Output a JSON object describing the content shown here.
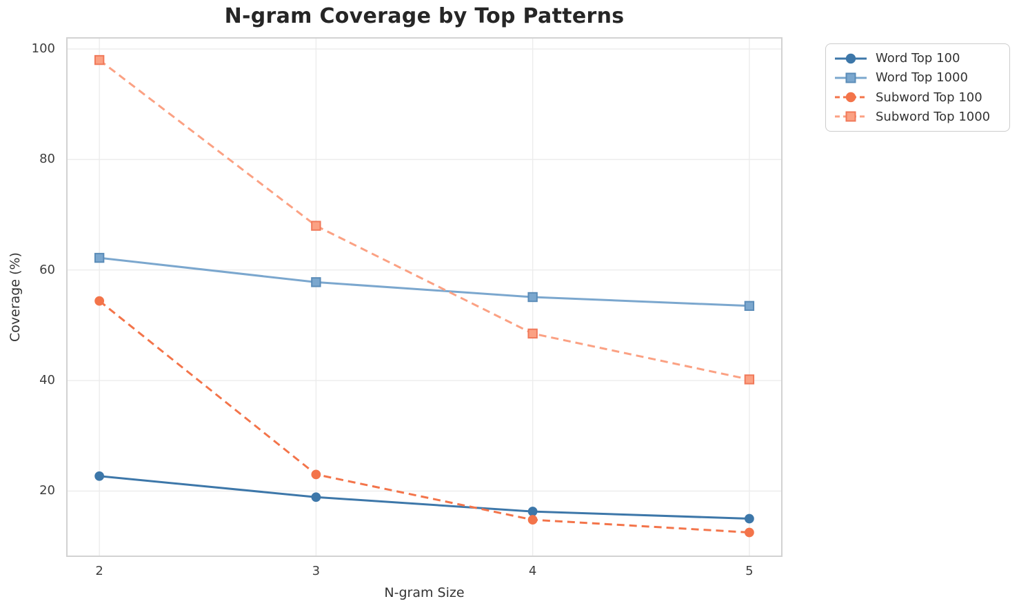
{
  "chart_data": {
    "type": "line",
    "title": "N-gram Coverage by Top Patterns",
    "xlabel": "N-gram Size",
    "ylabel": "Coverage (%)",
    "x": [
      2,
      3,
      4,
      5
    ],
    "xtick_labels": [
      "2",
      "3",
      "4",
      "5"
    ],
    "ytick_values": [
      20,
      40,
      60,
      80,
      100
    ],
    "ytick_labels": [
      "20",
      "40",
      "60",
      "80",
      "100"
    ],
    "xlim": [
      1.85,
      5.15
    ],
    "ylim": [
      8.2,
      102.0
    ],
    "grid": true,
    "legend_position": "outside-upper-right",
    "series": [
      {
        "name": "Word Top 100",
        "values": [
          22.7,
          18.9,
          16.3,
          15.0
        ],
        "color": "#3d77a9",
        "marker_edge": "#3d77a9",
        "marker": "circle",
        "line_style": "solid"
      },
      {
        "name": "Word Top 1000",
        "values": [
          62.2,
          57.8,
          55.1,
          53.5
        ],
        "color": "#7ba7ce",
        "marker_edge": "#5b8cb8",
        "marker": "square",
        "line_style": "solid"
      },
      {
        "name": "Subword Top 100",
        "values": [
          54.4,
          23.0,
          14.8,
          12.5
        ],
        "color": "#f3744a",
        "marker_edge": "#f3744a",
        "marker": "circle",
        "line_style": "dashed"
      },
      {
        "name": "Subword Top 1000",
        "values": [
          98.0,
          68.0,
          48.5,
          40.2
        ],
        "color": "#fba183",
        "marker_edge": "#f0795a",
        "marker": "square",
        "line_style": "dashed"
      }
    ]
  },
  "colors": {
    "background": "#ffffff",
    "grid": "#ececec",
    "spine": "#d2d2d2",
    "title_text": "#262626",
    "tick_text": "#3d3d3d",
    "label_text": "#333333",
    "legend_border": "#cccccc"
  }
}
